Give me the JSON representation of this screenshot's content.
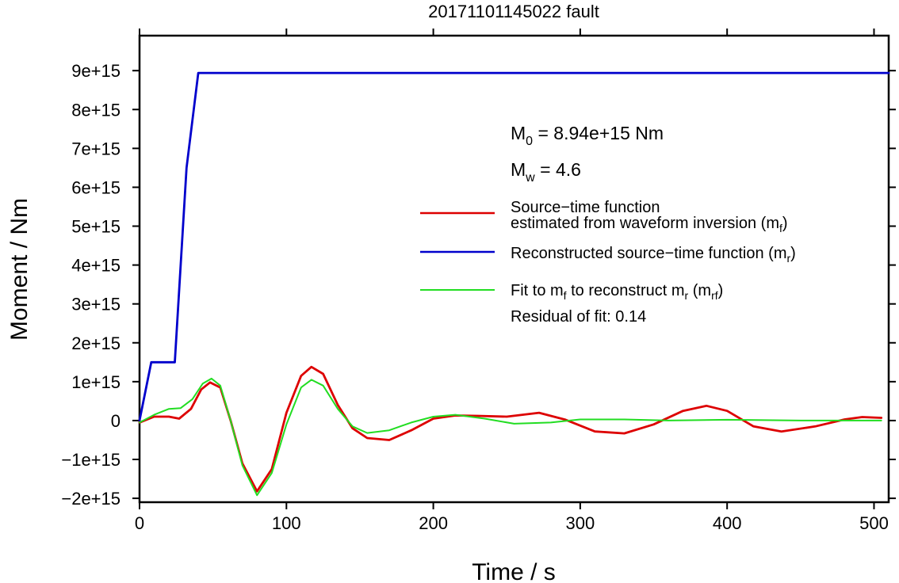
{
  "chart_data": {
    "type": "line",
    "title": "20171101145022 fault",
    "xlabel": "Time / s",
    "ylabel": "Moment / Nm",
    "xlim": [
      0,
      510
    ],
    "ylim": [
      -2100000000000000.0,
      9900000000000000.0
    ],
    "xticks": [
      0,
      100,
      200,
      300,
      400,
      500
    ],
    "xtick_labels": [
      "0",
      "100",
      "200",
      "300",
      "400",
      "500"
    ],
    "yticks": [
      -2000000000000000.0,
      -1000000000000000.0,
      0,
      1000000000000000.0,
      2000000000000000.0,
      3000000000000000.0,
      4000000000000000.0,
      5000000000000000.0,
      6000000000000000.0,
      7000000000000000.0,
      8000000000000000.0,
      9000000000000000.0
    ],
    "ytick_labels": [
      "−2e+15",
      "−1e+15",
      "0",
      "1e+15",
      "2e+15",
      "3e+15",
      "4e+15",
      "5e+15",
      "6e+15",
      "7e+15",
      "8e+15",
      "9e+15"
    ],
    "grid": false,
    "legend_position": "right",
    "series": [
      {
        "name": "Source−time function estimated from waveform inversion (mf)",
        "color": "#dd0000",
        "x": [
          0,
          10,
          20,
          27,
          35,
          42,
          48,
          55,
          62,
          70,
          80,
          90,
          100,
          110,
          117,
          125,
          135,
          145,
          155,
          170,
          185,
          200,
          215,
          230,
          250,
          272,
          290,
          310,
          330,
          350,
          370,
          386,
          400,
          418,
          437,
          460,
          480,
          492,
          505
        ],
        "y": [
          -50000000000000.0,
          100000000000000.0,
          100000000000000.0,
          50000000000000.0,
          300000000000000.0,
          800000000000000.0,
          980000000000000.0,
          850000000000000.0,
          0.0,
          -1100000000000000.0,
          -1820000000000000.0,
          -1250000000000000.0,
          200000000000000.0,
          1150000000000000.0,
          1380000000000000.0,
          1200000000000000.0,
          400000000000000.0,
          -200000000000000.0,
          -450000000000000.0,
          -500000000000000.0,
          -250000000000000.0,
          50000000000000.0,
          130000000000000.0,
          120000000000000.0,
          100000000000000.0,
          200000000000000.0,
          20000000000000.0,
          -280000000000000.0,
          -330000000000000.0,
          -100000000000000.0,
          250000000000000.0,
          380000000000000.0,
          250000000000000.0,
          -150000000000000.0,
          -280000000000000.0,
          -150000000000000.0,
          30000000000000.0,
          90000000000000.0,
          70000000000000.0
        ]
      },
      {
        "name": "Reconstructed source−time function (mr)",
        "color": "#0000cc",
        "x": [
          0,
          8,
          24,
          32,
          40,
          510
        ],
        "y": [
          0,
          1500000000000000.0,
          1500000000000000.0,
          6500000000000000.0,
          8940000000000000.0,
          8940000000000000.0
        ]
      },
      {
        "name": "Fit to mf to reconstruct mr (mrf)",
        "color": "#22dd22",
        "x": [
          0,
          10,
          20,
          28,
          36,
          43,
          49,
          55,
          62,
          70,
          80,
          90,
          100,
          110,
          117,
          125,
          135,
          145,
          155,
          170,
          185,
          200,
          215,
          235,
          255,
          280,
          300,
          330,
          360,
          400,
          450,
          505
        ],
        "y": [
          -50000000000000.0,
          150000000000000.0,
          300000000000000.0,
          320000000000000.0,
          550000000000000.0,
          950000000000000.0,
          1080000000000000.0,
          900000000000000.0,
          0.0,
          -1150000000000000.0,
          -1920000000000000.0,
          -1350000000000000.0,
          -100000000000000.0,
          850000000000000.0,
          1050000000000000.0,
          900000000000000.0,
          300000000000000.0,
          -150000000000000.0,
          -320000000000000.0,
          -250000000000000.0,
          -50000000000000.0,
          100000000000000.0,
          150000000000000.0,
          50000000000000.0,
          -80000000000000.0,
          -50000000000000.0,
          30000000000000.0,
          30000000000000.0,
          0.0,
          20000000000000.0,
          0.0,
          0.0
        ]
      }
    ],
    "annotations": {
      "m0_main": "M",
      "m0_sub": "0",
      "m0_rest": " = 8.94e+15 Nm",
      "mw_main": "M",
      "mw_sub": "w",
      "mw_rest": " = 4.6",
      "residual": "Residual of fit: 0.14"
    },
    "legend": [
      {
        "color": "#dd0000",
        "line1": "Source−time function",
        "line2_main": "estimated from waveform inversion (m",
        "line2_sub": "f",
        "line2_end": ")"
      },
      {
        "color": "#0000cc",
        "line1_main": "Reconstructed source−time function (m",
        "line1_sub": "r",
        "line1_end": ")"
      },
      {
        "color": "#22dd22",
        "line1_a": "Fit to m",
        "line1_sub1": "f",
        "line1_b": " to reconstruct m",
        "line1_sub2": "r",
        "line1_c": " (m",
        "line1_sub3": "rf",
        "line1_end": ")"
      }
    ]
  }
}
